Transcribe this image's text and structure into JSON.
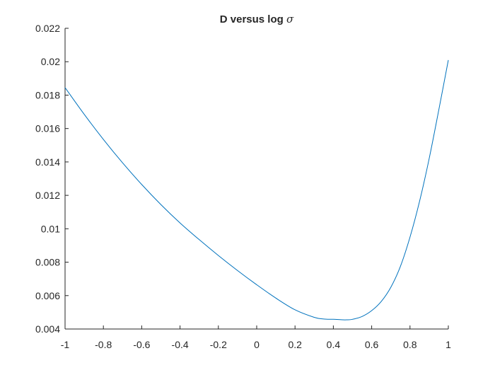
{
  "chart_data": {
    "type": "line",
    "title": {
      "prefix": "D versus log ",
      "symbol": "σ"
    },
    "xlabel": "",
    "ylabel": "",
    "xlim": [
      -1,
      1
    ],
    "ylim": [
      0.004,
      0.022
    ],
    "grid": false,
    "x_ticks": [
      -1,
      -0.8,
      -0.6,
      -0.4,
      -0.2,
      0,
      0.2,
      0.4,
      0.6,
      0.8,
      1
    ],
    "x_tick_labels": [
      "-1",
      "-0.8",
      "-0.6",
      "-0.4",
      "-0.2",
      "0",
      "0.2",
      "0.4",
      "0.6",
      "0.8",
      "1"
    ],
    "y_ticks": [
      0.004,
      0.006,
      0.008,
      0.01,
      0.012,
      0.014,
      0.016,
      0.018,
      0.02,
      0.022
    ],
    "y_tick_labels": [
      "0.004",
      "0.006",
      "0.008",
      "0.01",
      "0.012",
      "0.014",
      "0.016",
      "0.018",
      "0.02",
      "0.022"
    ],
    "series": [
      {
        "color": "#0072BD",
        "x": [
          -1.0,
          -0.9,
          -0.8,
          -0.7,
          -0.6,
          -0.5,
          -0.4,
          -0.3,
          -0.2,
          -0.1,
          0.0,
          0.1,
          0.2,
          0.3,
          0.35,
          0.4,
          0.45,
          0.47,
          0.5,
          0.55,
          0.6,
          0.65,
          0.7,
          0.75,
          0.8,
          0.85,
          0.9,
          0.95,
          1.0
        ],
        "y": [
          0.01845,
          0.01685,
          0.01535,
          0.01395,
          0.01265,
          0.01145,
          0.01035,
          0.00935,
          0.0084,
          0.0075,
          0.00665,
          0.00585,
          0.00515,
          0.0047,
          0.0046,
          0.00458,
          0.00455,
          0.00455,
          0.00458,
          0.00475,
          0.0051,
          0.00565,
          0.0065,
          0.00775,
          0.0095,
          0.01165,
          0.0142,
          0.0171,
          0.0201
        ]
      }
    ]
  }
}
